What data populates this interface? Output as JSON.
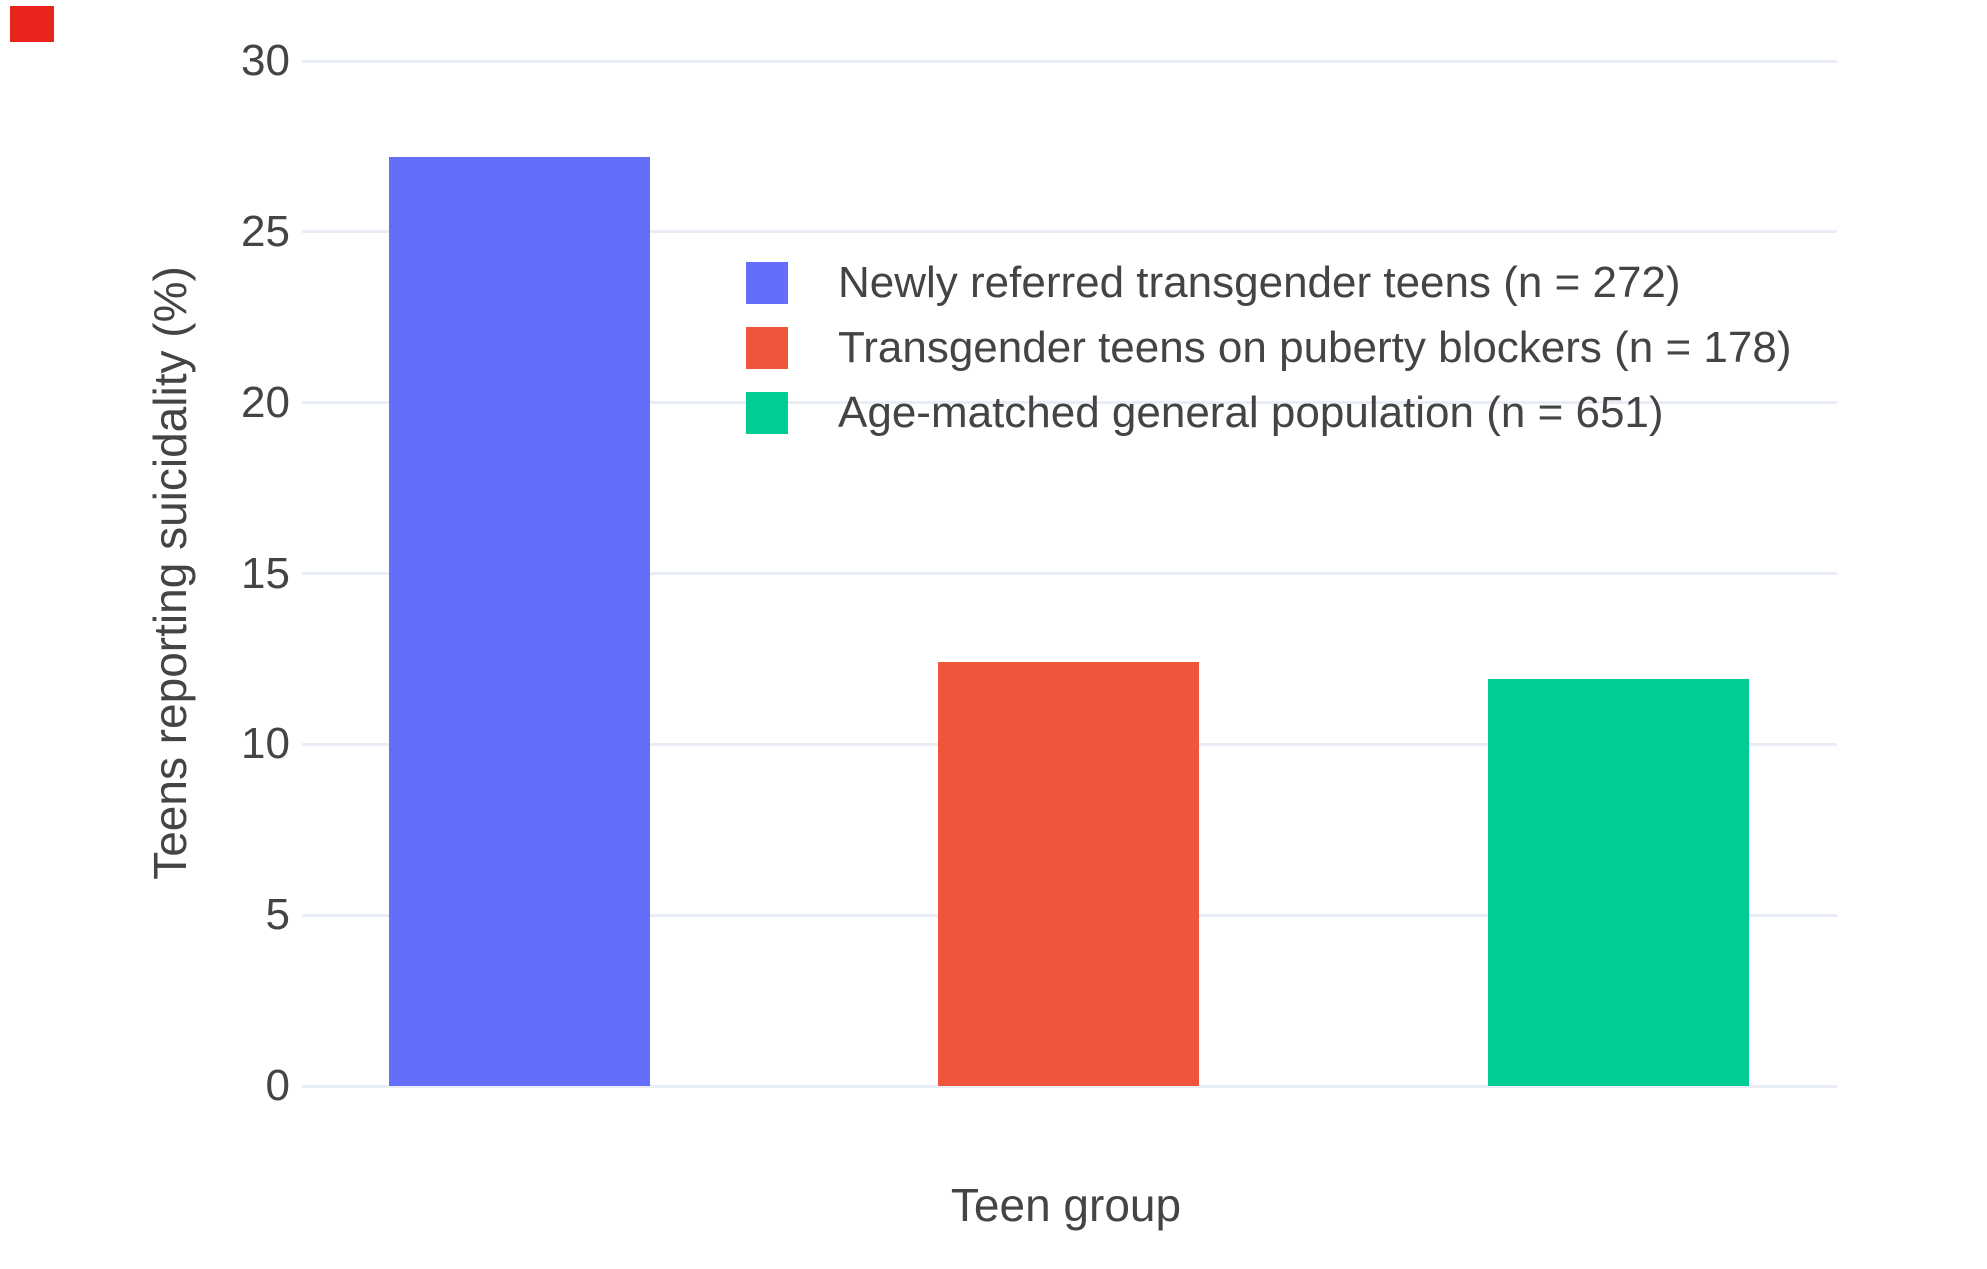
{
  "corner_mark": {
    "color": "#e8241c"
  },
  "colors": {
    "background": "#ffffff",
    "grid": "#e8edf6",
    "text": "#444444"
  },
  "chart_data": {
    "type": "bar",
    "title": "",
    "xlabel": "Teen group",
    "ylabel": "Teens reporting suicidality (%)",
    "ylim": [
      0,
      30
    ],
    "yticks": [
      0,
      5,
      10,
      15,
      20,
      25,
      30
    ],
    "grid": true,
    "legend_position": "inside-top-right",
    "categories": [
      "Newly referred transgender teens",
      "Transgender teens on puberty blockers",
      "Age-matched general population"
    ],
    "series": [
      {
        "name": "Newly referred transgender teens (n = 272)",
        "n": 272,
        "value": 27.2,
        "color": "#636EFA"
      },
      {
        "name": "Transgender teens on puberty blockers (n = 178)",
        "n": 178,
        "value": 12.4,
        "color": "#EF553B"
      },
      {
        "name": "Age-matched general population (n = 651)",
        "n": 651,
        "value": 11.9,
        "color": "#00CC96"
      }
    ]
  }
}
